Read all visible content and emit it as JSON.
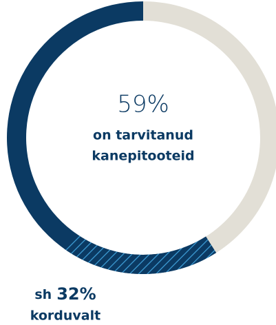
{
  "chart_data": {
    "type": "donut",
    "value": 59,
    "value_label": "59%",
    "caption_lines": [
      "on tarvitanud",
      "kanepitooteid"
    ],
    "sub": {
      "prefix": "sh",
      "value": 32,
      "value_label": "32%",
      "suffix": "korduvalt"
    },
    "color": "#0b3a63",
    "rest_color": "#e2dfd6",
    "hatch_color": "#3f9fd8"
  }
}
